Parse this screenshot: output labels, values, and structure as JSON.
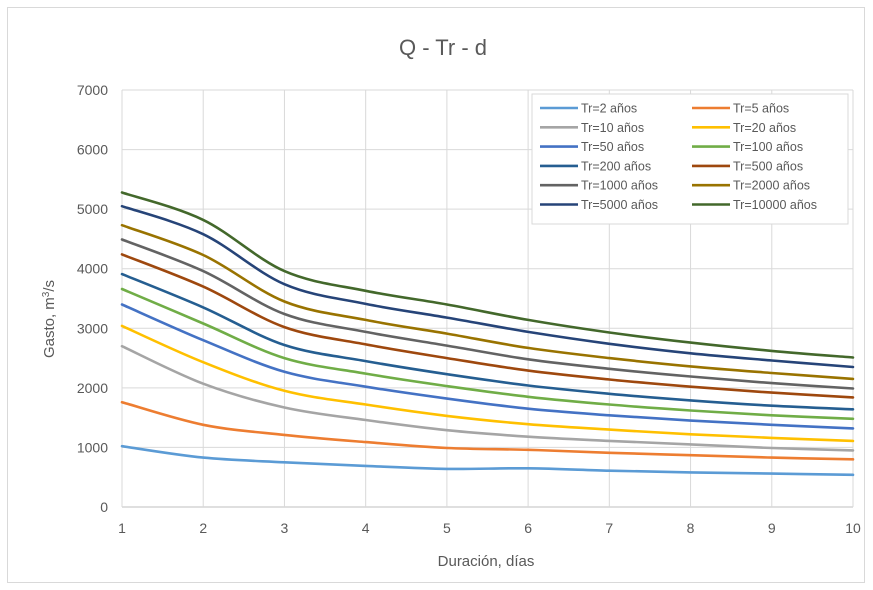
{
  "chart_data": {
    "type": "line",
    "title": "Q - Tr - d",
    "xlabel": "Duración, días",
    "ylabel_prefix": "Gasto, m",
    "ylabel_sup": "3",
    "ylabel_suffix": "/s",
    "x": [
      1,
      2,
      3,
      4,
      5,
      6,
      7,
      8,
      9,
      10
    ],
    "xlim": [
      1,
      10
    ],
    "ylim": [
      0,
      7000
    ],
    "yticks": [
      0,
      1000,
      2000,
      3000,
      4000,
      5000,
      6000,
      7000
    ],
    "xticks": [
      1,
      2,
      3,
      4,
      5,
      6,
      7,
      8,
      9,
      10
    ],
    "grid": true,
    "legend_position": "top-right",
    "series": [
      {
        "name": "Tr=2 años",
        "color": "#5b9bd5",
        "values": [
          1020,
          830,
          750,
          690,
          640,
          650,
          610,
          580,
          560,
          540
        ]
      },
      {
        "name": "Tr=5 años",
        "color": "#ed7d31",
        "values": [
          1760,
          1380,
          1210,
          1090,
          990,
          960,
          910,
          870,
          830,
          800
        ]
      },
      {
        "name": "Tr=10 años",
        "color": "#a5a5a5",
        "values": [
          2700,
          2070,
          1670,
          1460,
          1290,
          1180,
          1110,
          1050,
          990,
          950
        ]
      },
      {
        "name": "Tr=20 años",
        "color": "#ffc000",
        "values": [
          3040,
          2430,
          1950,
          1720,
          1530,
          1390,
          1300,
          1220,
          1160,
          1110
        ]
      },
      {
        "name": "Tr=50 años",
        "color": "#4472c4",
        "values": [
          3400,
          2800,
          2270,
          2020,
          1820,
          1650,
          1540,
          1450,
          1380,
          1320
        ]
      },
      {
        "name": "Tr=100 años",
        "color": "#70ad47",
        "values": [
          3660,
          3080,
          2500,
          2240,
          2030,
          1850,
          1720,
          1620,
          1540,
          1480
        ]
      },
      {
        "name": "Tr=200 años",
        "color": "#255e91",
        "values": [
          3910,
          3350,
          2720,
          2450,
          2230,
          2040,
          1900,
          1790,
          1700,
          1640
        ]
      },
      {
        "name": "Tr=500 años",
        "color": "#9e480e",
        "values": [
          4240,
          3700,
          3020,
          2730,
          2500,
          2290,
          2140,
          2020,
          1920,
          1840
        ]
      },
      {
        "name": "Tr=1000 años",
        "color": "#636363",
        "values": [
          4490,
          3960,
          3240,
          2940,
          2710,
          2480,
          2320,
          2190,
          2080,
          1990
        ]
      },
      {
        "name": "Tr=2000 años",
        "color": "#997300",
        "values": [
          4730,
          4230,
          3450,
          3140,
          2910,
          2670,
          2500,
          2360,
          2250,
          2150
        ]
      },
      {
        "name": "Tr=5000 años",
        "color": "#264478",
        "values": [
          5050,
          4580,
          3740,
          3410,
          3180,
          2940,
          2740,
          2580,
          2460,
          2350
        ]
      },
      {
        "name": "Tr=10000 años",
        "color": "#43682b",
        "values": [
          5280,
          4820,
          3960,
          3630,
          3400,
          3140,
          2930,
          2760,
          2620,
          2510
        ]
      }
    ]
  }
}
